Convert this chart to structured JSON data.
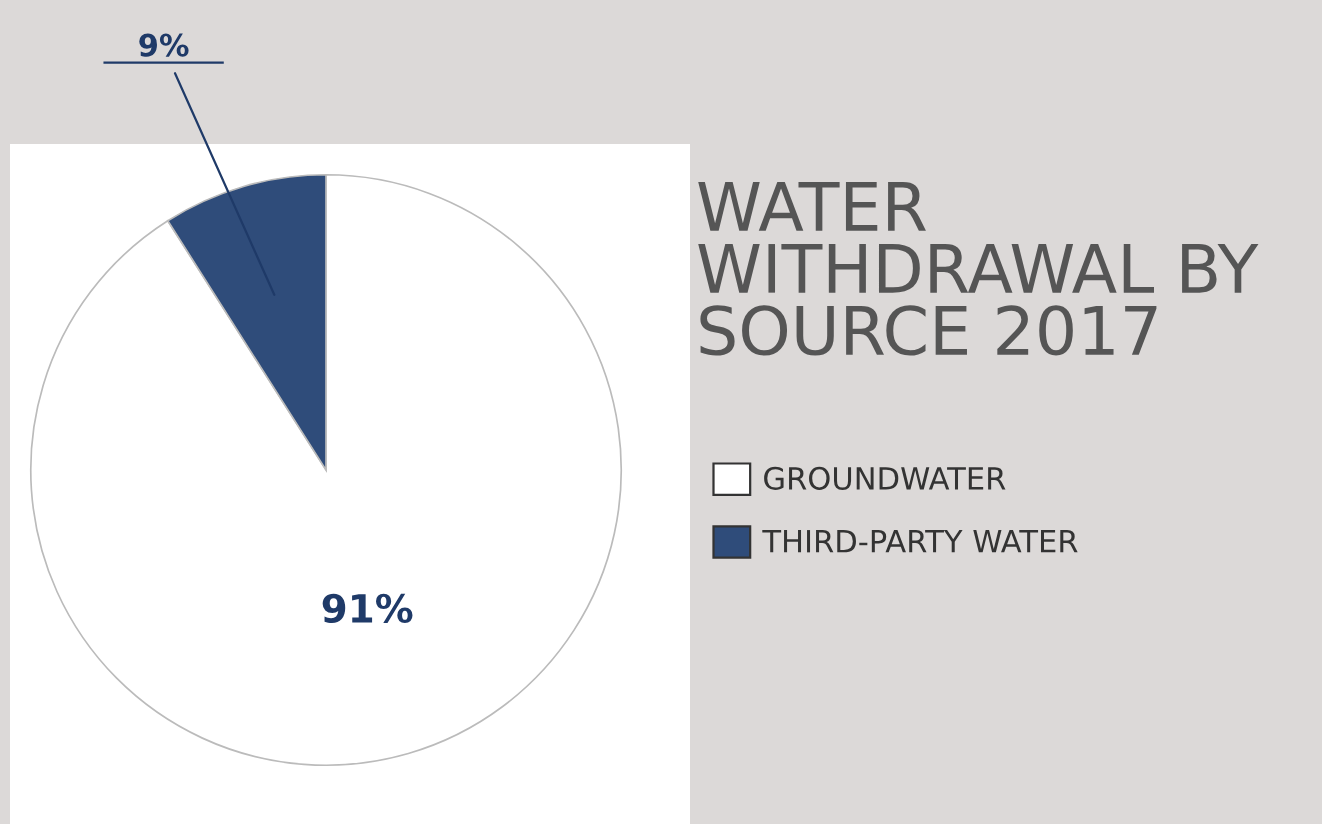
{
  "chart_data": {
    "type": "pie",
    "title": "WATER\nWITHDRAWAL BY\nSOURCE 2017",
    "categories": [
      "GROUNDWATER",
      "THIRD-PARTY WATER"
    ],
    "values": [
      91,
      9
    ],
    "colors": [
      "#ffffff",
      "#2f4c7a"
    ],
    "value_labels": [
      "91%",
      "9%"
    ],
    "legend": "right"
  }
}
